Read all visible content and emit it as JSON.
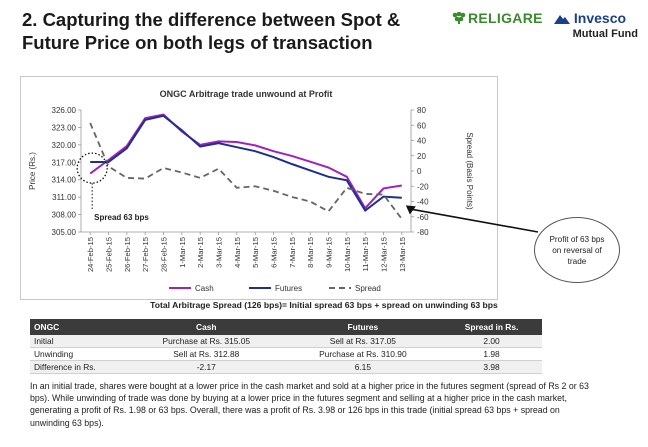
{
  "slide": {
    "title_line1": "2. Capturing the difference between Spot &",
    "title_line2": "Future Price on both legs of transaction"
  },
  "logo": {
    "brand": "RELIGARE",
    "partner": "Invesco",
    "subtitle": "Mutual Fund",
    "brand_color": "#3a8a2e",
    "partner_color": "#1b3f8f"
  },
  "chart_data": {
    "type": "line",
    "title": "ONGC Arbitrage trade unwound at Profit",
    "ylabel": "Price (Rs.)",
    "y2label": "Spread (Basis Points)",
    "ylim": [
      305.0,
      326.0
    ],
    "yticks": [
      "326.00",
      "323.00",
      "320.00",
      "317.00",
      "314.00",
      "311.00",
      "308.00",
      "305.00"
    ],
    "y2lim": [
      -80,
      80
    ],
    "y2ticks": [
      "80",
      "60",
      "40",
      "20",
      "0",
      "-20",
      "-40",
      "-60",
      "-80"
    ],
    "categories": [
      "24-Feb-15",
      "25-Feb-15",
      "26-Feb-15",
      "27-Feb-15",
      "28-Feb-15",
      "1-Mar-15",
      "2-Mar-15",
      "3-Mar-15",
      "4-Mar-15",
      "5-Mar-15",
      "6-Mar-15",
      "7-Mar-15",
      "8-Mar-15",
      "9-Mar-15",
      "10-Mar-15",
      "11-Mar-15",
      "12-Mar-15",
      "13-Mar-15"
    ],
    "series": [
      {
        "name": "Cash",
        "axis": "left",
        "color": "#a020c0",
        "dash": "",
        "values": [
          315.05,
          317.4,
          319.8,
          324.6,
          325.2,
          322.3,
          320.0,
          320.6,
          320.5,
          319.9,
          318.9,
          318.1,
          317.1,
          316.1,
          314.5,
          309.1,
          312.5,
          313.0
        ]
      },
      {
        "name": "Futures",
        "axis": "left",
        "color": "#1f2f8f",
        "dash": "",
        "values": [
          317.05,
          317.05,
          319.4,
          324.3,
          325.0,
          322.5,
          319.7,
          320.3,
          319.6,
          318.9,
          317.9,
          316.7,
          315.6,
          314.5,
          313.9,
          308.7,
          311.1,
          310.9
        ]
      },
      {
        "name": "Spread",
        "axis": "right",
        "color": "#666666",
        "dash": "6,4",
        "values": [
          63,
          6,
          -9,
          -10,
          4,
          -2,
          -9,
          3,
          -22,
          -20,
          -26,
          -34,
          -40,
          -53,
          -22,
          -30,
          -31,
          -63
        ]
      }
    ],
    "legend_position": "bottom",
    "annotations": {
      "spread_label": "Spread 63 bps",
      "callout": "Profit of 63 bps on reversal of trade"
    }
  },
  "summary": "Total Arbitrage Spread (126 bps)= Initial spread 63 bps + spread on unwinding 63 bps",
  "table": {
    "headers": [
      "ONGC",
      "Cash",
      "Futures",
      "Spread in Rs."
    ],
    "rows": [
      [
        "Initial",
        "Purchase at Rs. 315.05",
        "Sell at Rs. 317.05",
        "2.00"
      ],
      [
        "Unwinding",
        "Sell at Rs. 312.88",
        "Purchase at Rs. 310.90",
        "1.98"
      ],
      [
        "Difference in Rs.",
        "-2.17",
        "6.15",
        "3.98"
      ]
    ]
  },
  "paragraph": "In an initial trade, shares were bought at a lower price in the cash market and sold at a higher price in the futures segment (spread of Rs 2 or 63 bps). While unwinding of trade was done by buying at a lower price in the futures segment and selling at a higher price in the cash market, generating a profit of Rs. 1.98 or 63 bps. Overall, there was a profit of  Rs. 3.98 or 126 bps in this trade (initial spread 63 bps + spread on unwinding 63 bps)."
}
